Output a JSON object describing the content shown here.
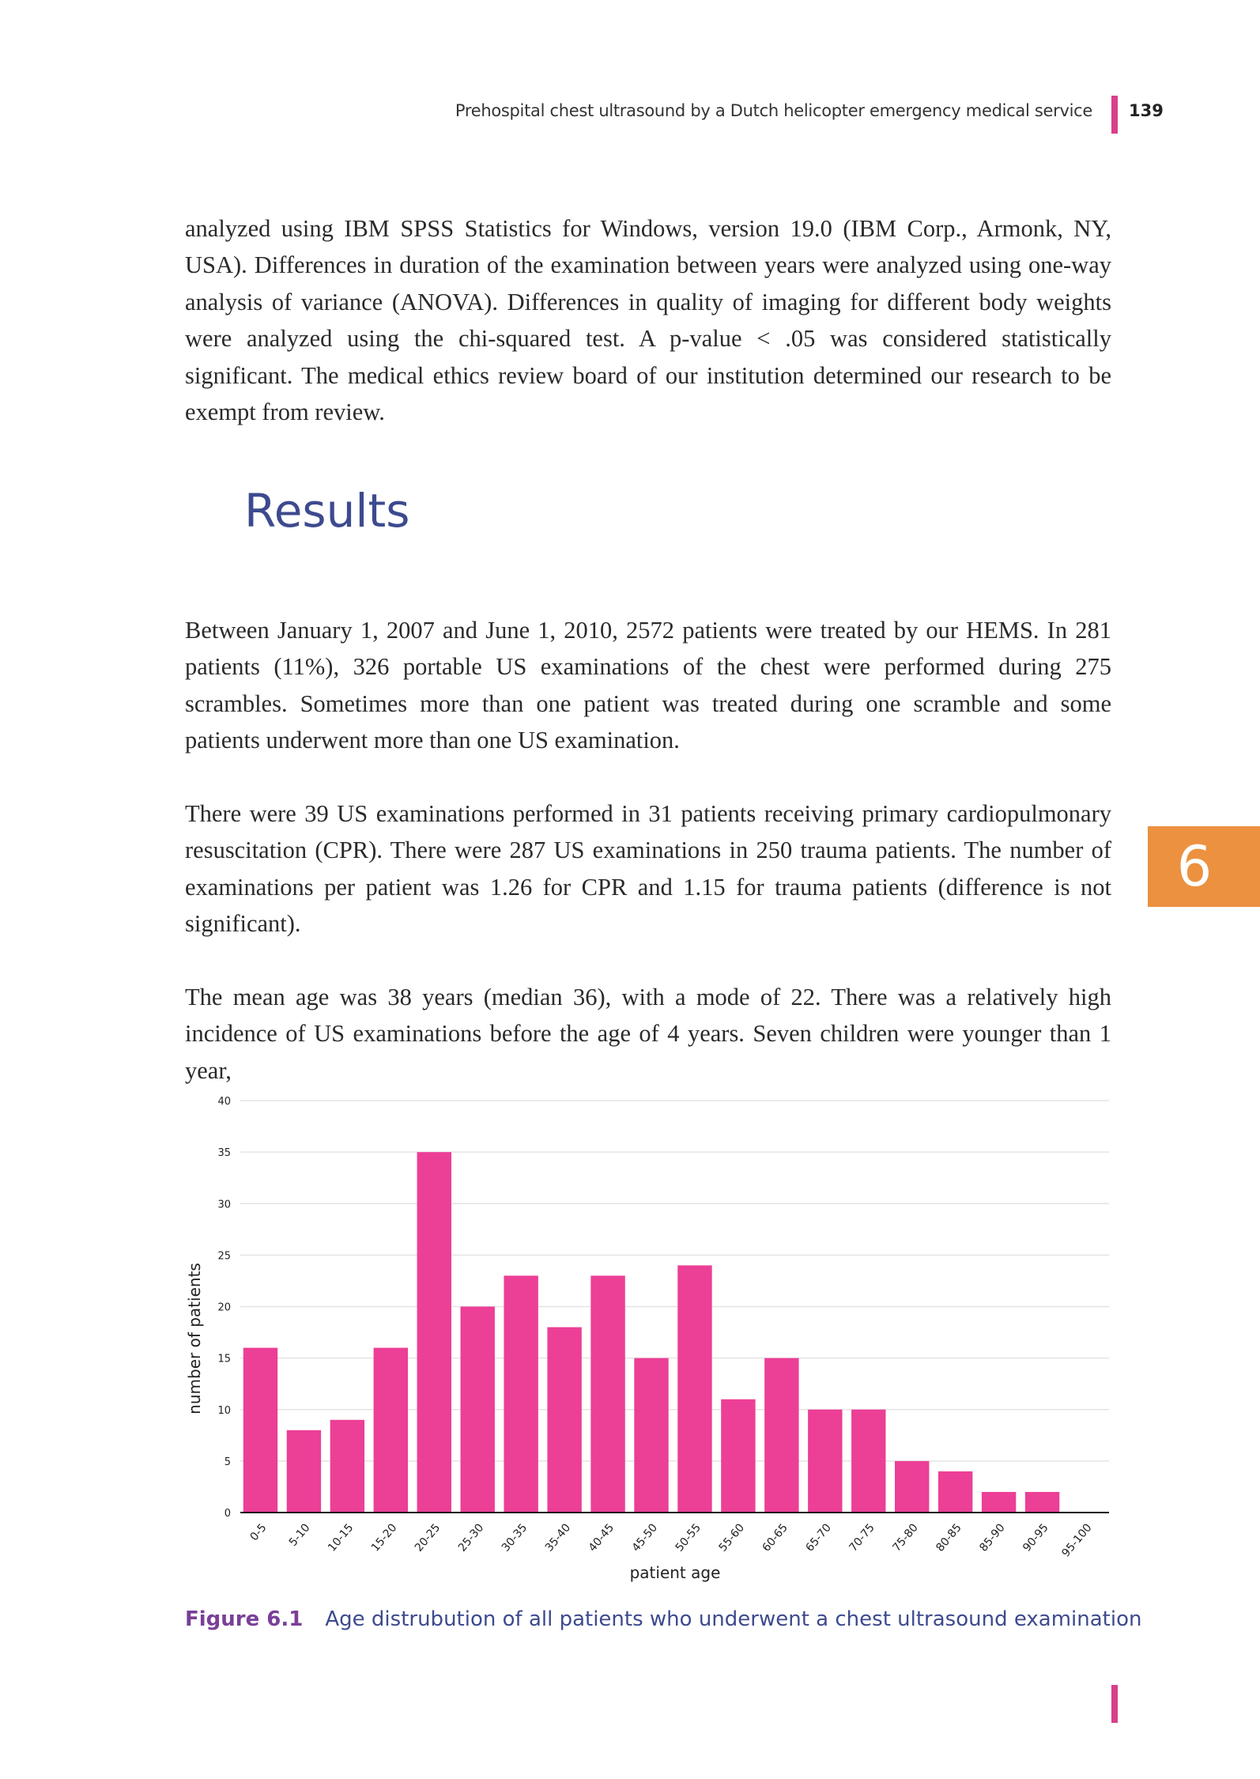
{
  "header": {
    "running_title": "Prehospital chest ultrasound by a Dutch helicopter emergency medical service",
    "page_number": "139"
  },
  "paragraphs": {
    "p1": "analyzed using IBM SPSS Statistics for Windows, version 19.0 (IBM Corp., Armonk, NY, USA). Differences in duration of the examination between years were analyzed using one-way analysis of variance (ANOVA). Differences in quality of imaging for different body weights were analyzed using the chi-squared test. A p-value < .05 was considered statistically significant. The medical ethics review board of our institution determined our research to be exempt from review.",
    "p2": "Between January 1, 2007 and June 1, 2010, 2572 patients were treated by our HEMS. In 281 patients (11%), 326 portable US examinations of the chest were performed during 275 scrambles. Sometimes more than one patient was treated during one scramble and some patients underwent more than one US examination.",
    "p3": "There were 39 US examinations performed in 31 patients receiving primary cardiopulmonary resuscitation (CPR). There were 287 US examinations in 250 trauma patients. The number of examinations per patient was 1.26 for CPR and 1.15 for trauma patients (difference is not significant).",
    "p4": "The mean age was 38 years (median 36), with a mode of 22. There was a relatively high incidence of US examinations before the age of 4 years. Seven children were younger than 1 year,"
  },
  "section_heading": "Results",
  "chapter_tab": "6",
  "chart_data": {
    "type": "bar",
    "title": "",
    "xlabel": "patient age",
    "ylabel": "number of patients",
    "ylim": [
      0,
      40
    ],
    "yticks": [
      0,
      5,
      10,
      15,
      20,
      25,
      30,
      35,
      40
    ],
    "grid": true,
    "categories": [
      "0-5",
      "5-10",
      "10-15",
      "15-20",
      "20-25",
      "25-30",
      "30-35",
      "35-40",
      "40-45",
      "45-50",
      "50-55",
      "55-60",
      "60-65",
      "65-70",
      "70-75",
      "75-80",
      "80-85",
      "85-90",
      "90-95",
      "95-100"
    ],
    "values": [
      16,
      8,
      9,
      16,
      35,
      20,
      23,
      18,
      23,
      15,
      24,
      11,
      15,
      10,
      10,
      5,
      4,
      2,
      2,
      0
    ],
    "bar_color": "#ec3f96"
  },
  "caption": {
    "label": "Figure 6.1",
    "text": "Age distrubution of all patients who underwent a chest ultrasound examination"
  }
}
